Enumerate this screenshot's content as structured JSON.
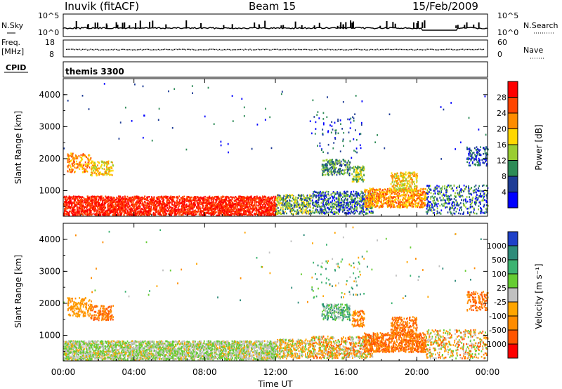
{
  "header": {
    "station": "Inuvik (fitACF)",
    "beam": "Beam 15",
    "date": "15/Feb/2009"
  },
  "noise_panel": {
    "left_label": "N.Sky",
    "right_label": "N.Search",
    "ticks_left": [
      "10^5",
      "10^0"
    ],
    "ticks_right": [
      "10^5",
      "10^0"
    ]
  },
  "freq_panel": {
    "left_label_1": "Freq.",
    "left_label_2": "[MHz]",
    "right_label": "Nave",
    "ticks_left": [
      "18",
      "8"
    ],
    "ticks_right": [
      "60",
      "0"
    ]
  },
  "cpid": {
    "label": "CPID",
    "value": "themis 3300"
  },
  "chart_data": [
    {
      "type": "heatmap",
      "name": "power",
      "xlabel": "Time UT",
      "ylabel": "Slant Range [km]",
      "x_ticks": [
        "00:00",
        "04:00",
        "08:00",
        "12:00",
        "16:00",
        "20:00",
        "00:00"
      ],
      "y_ticks": [
        "1000",
        "2000",
        "3000",
        "4000"
      ],
      "colorbar_label": "Power [dB]",
      "colorbar_ticks": [
        "28",
        "24",
        "20",
        "16",
        "12",
        "8",
        "4"
      ],
      "colorbar_colors": [
        "#ff0000",
        "#ff4500",
        "#ff8c00",
        "#ffd700",
        "#9acd32",
        "#2e8b57",
        "#1e3c96",
        "#0000ff"
      ]
    },
    {
      "type": "heatmap",
      "name": "velocity",
      "xlabel": "Time UT",
      "ylabel": "Slant Range [km]",
      "x_ticks": [
        "00:00",
        "04:00",
        "08:00",
        "12:00",
        "16:00",
        "20:00",
        "00:00"
      ],
      "y_ticks": [
        "1000",
        "2000",
        "3000",
        "4000"
      ],
      "colorbar_label": "Velocity [m s⁻¹]",
      "colorbar_ticks": [
        "1000",
        "500",
        "100",
        "25",
        "-25",
        "-100",
        "-500",
        "-1000"
      ],
      "colorbar_colors": [
        "#1e40c8",
        "#2e8b7a",
        "#3cb371",
        "#66cc33",
        "#c0c0c0",
        "#ffa500",
        "#ff8c00",
        "#ff5500",
        "#ff0000"
      ]
    }
  ]
}
